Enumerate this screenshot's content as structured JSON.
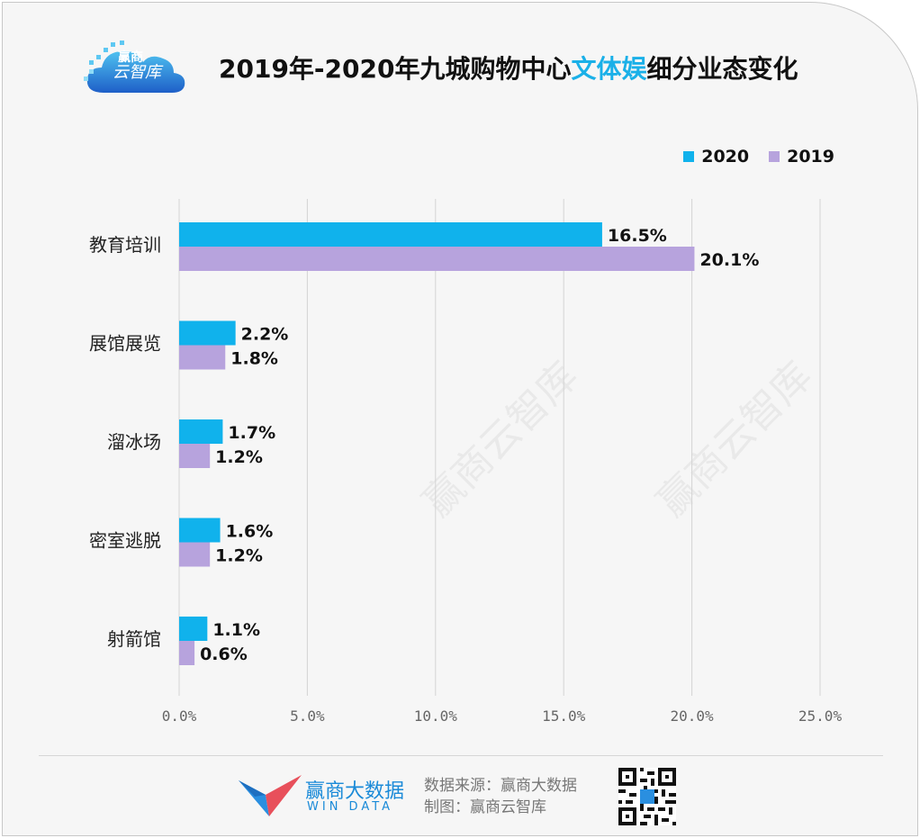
{
  "header": {
    "title_part1": "2019年-2020年九城购物中心",
    "title_highlight": "文体娱",
    "title_part2": "细分业态变化",
    "logo_line1": "赢商",
    "logo_line2": "云智库"
  },
  "watermark": "赢商云智库",
  "colors": {
    "s2020": "#10b2ec",
    "s2019": "#b7a3dd",
    "grid": "#d4d4d4",
    "highlight": "#1ab0e8"
  },
  "chart_data": {
    "type": "bar",
    "orientation": "horizontal",
    "categories": [
      "教育培训",
      "展馆展览",
      "溜冰场",
      "密室逃脱",
      "射箭馆"
    ],
    "series": [
      {
        "name": "2020",
        "values": [
          16.5,
          2.2,
          1.7,
          1.6,
          1.1
        ],
        "labels": [
          "16.5%",
          "2.2%",
          "1.7%",
          "1.6%",
          "1.1%"
        ]
      },
      {
        "name": "2019",
        "values": [
          20.1,
          1.8,
          1.2,
          1.2,
          0.6
        ],
        "labels": [
          "20.1%",
          "1.8%",
          "1.2%",
          "1.2%",
          "0.6%"
        ]
      }
    ],
    "xlim": [
      0,
      25
    ],
    "xticks": [
      0,
      5,
      10,
      15,
      20,
      25
    ],
    "xtick_labels": [
      "0.0%",
      "5.0%",
      "10.0%",
      "15.0%",
      "20.0%",
      "25.0%"
    ],
    "grid": true,
    "legend_position": "top-right"
  },
  "footer": {
    "brand_cn": "赢商大数据",
    "brand_en": "WIN DATA",
    "source_line1": "数据来源：赢商大数据",
    "source_line2": "制图：赢商云智库"
  }
}
